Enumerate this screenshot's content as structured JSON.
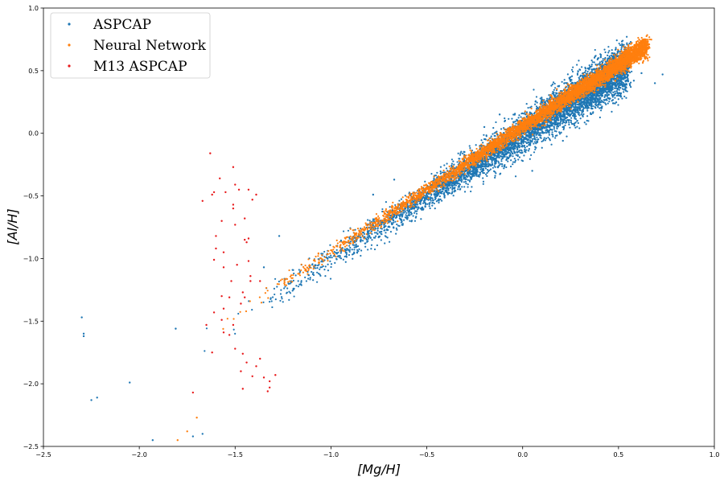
{
  "chart_data": {
    "type": "scatter",
    "xlabel": "[Mg/H]",
    "ylabel": "[Al/H]",
    "xlim": [
      -2.5,
      1.0
    ],
    "ylim": [
      -2.5,
      1.0
    ],
    "xticks": [
      -2.5,
      -2.0,
      -1.5,
      -1.0,
      -0.5,
      0.0,
      0.5,
      1.0
    ],
    "yticks": [
      -2.5,
      -2.0,
      -1.5,
      -1.0,
      -0.5,
      0.0,
      0.5,
      1.0
    ],
    "xtick_labels": [
      "−2.5",
      "−2.0",
      "−1.5",
      "−1.0",
      "−0.5",
      "0.0",
      "0.5",
      "1.0"
    ],
    "ytick_labels": [
      "−2.5",
      "−2.0",
      "−1.5",
      "−1.0",
      "−0.5",
      "0.0",
      "0.5",
      "1.0"
    ],
    "grid": false,
    "legend_position": "top-left",
    "legend": [
      "ASPCAP",
      "Neural Network",
      "M13 ASPCAP"
    ],
    "series": [
      {
        "name": "ASPCAP",
        "color": "#1f77b4",
        "trend": {
          "slope": 1.0,
          "intercept": 0.0,
          "x_range": [
            -1.8,
            0.55
          ],
          "count_approx": 20000
        },
        "points": [
          [
            -2.3,
            -1.47
          ],
          [
            -2.29,
            -1.6
          ],
          [
            -2.29,
            -1.62
          ],
          [
            -2.25,
            -2.13
          ],
          [
            -2.22,
            -2.11
          ],
          [
            -2.05,
            -1.99
          ],
          [
            -1.81,
            -1.56
          ],
          [
            -1.93,
            -2.45
          ],
          [
            -1.72,
            -2.42
          ],
          [
            -1.67,
            -2.4
          ],
          [
            -1.35,
            -1.07
          ],
          [
            -1.27,
            -0.82
          ],
          [
            -0.78,
            -0.49
          ],
          [
            -0.67,
            -0.37
          ],
          [
            0.58,
            0.42
          ],
          [
            0.62,
            0.48
          ],
          [
            0.69,
            0.4
          ],
          [
            0.73,
            0.47
          ],
          [
            0.53,
            0.61
          ],
          [
            0.21,
            -0.06
          ],
          [
            0.15,
            0.38
          ],
          [
            -0.2,
            0.05
          ],
          [
            -0.12,
            0.15
          ],
          [
            0.05,
            -0.3
          ]
        ]
      },
      {
        "name": "Neural Network",
        "color": "#ff7f0e",
        "trend": {
          "slope": 1.0,
          "intercept": 0.05,
          "x_range": [
            -1.8,
            0.65
          ],
          "count_approx": 20000
        },
        "points": [
          [
            -1.8,
            -2.45
          ],
          [
            -1.75,
            -2.38
          ],
          [
            -1.7,
            -2.27
          ],
          [
            0.6,
            0.66
          ],
          [
            0.63,
            0.69
          ],
          [
            0.65,
            0.7
          ]
        ]
      },
      {
        "name": "M13 ASPCAP",
        "color": "#e8191b",
        "points": [
          [
            -1.63,
            -0.16
          ],
          [
            -1.58,
            -0.36
          ],
          [
            -1.62,
            -0.49
          ],
          [
            -1.67,
            -0.54
          ],
          [
            -1.55,
            -0.47
          ],
          [
            -1.51,
            -0.27
          ],
          [
            -1.5,
            -0.41
          ],
          [
            -1.48,
            -0.45
          ],
          [
            -1.43,
            -0.45
          ],
          [
            -1.41,
            -0.53
          ],
          [
            -1.39,
            -0.49
          ],
          [
            -1.51,
            -0.57
          ],
          [
            -1.51,
            -0.6
          ],
          [
            -1.57,
            -0.7
          ],
          [
            -1.6,
            -0.82
          ],
          [
            -1.5,
            -0.73
          ],
          [
            -1.45,
            -0.68
          ],
          [
            -1.45,
            -0.85
          ],
          [
            -1.44,
            -0.87
          ],
          [
            -1.43,
            -0.84
          ],
          [
            -1.56,
            -0.95
          ],
          [
            -1.43,
            -1.02
          ],
          [
            -1.6,
            -0.92
          ],
          [
            -1.61,
            -1.01
          ],
          [
            -1.56,
            -1.07
          ],
          [
            -1.49,
            -1.05
          ],
          [
            -1.52,
            -1.18
          ],
          [
            -1.57,
            -1.3
          ],
          [
            -1.46,
            -1.27
          ],
          [
            -1.42,
            -1.18
          ],
          [
            -1.37,
            -1.18
          ],
          [
            -1.53,
            -1.31
          ],
          [
            -1.45,
            -1.31
          ],
          [
            -1.42,
            -1.14
          ],
          [
            -1.47,
            -1.36
          ],
          [
            -1.61,
            -1.43
          ],
          [
            -1.56,
            -1.4
          ],
          [
            -1.65,
            -1.53
          ],
          [
            -1.56,
            -1.59
          ],
          [
            -1.53,
            -1.61
          ],
          [
            -1.62,
            -1.75
          ],
          [
            -1.5,
            -1.72
          ],
          [
            -1.46,
            -1.76
          ],
          [
            -1.44,
            -1.83
          ],
          [
            -1.47,
            -1.9
          ],
          [
            -1.37,
            -1.8
          ],
          [
            -1.39,
            -1.86
          ],
          [
            -1.41,
            -1.94
          ],
          [
            -1.35,
            -1.95
          ],
          [
            -1.32,
            -1.98
          ],
          [
            -1.32,
            -2.03
          ],
          [
            -1.29,
            -1.93
          ],
          [
            -1.33,
            -2.06
          ],
          [
            -1.46,
            -2.04
          ],
          [
            -1.72,
            -2.07
          ],
          [
            -1.57,
            -1.49
          ],
          [
            -1.51,
            -1.53
          ],
          [
            -1.61,
            -0.47
          ]
        ]
      }
    ]
  }
}
